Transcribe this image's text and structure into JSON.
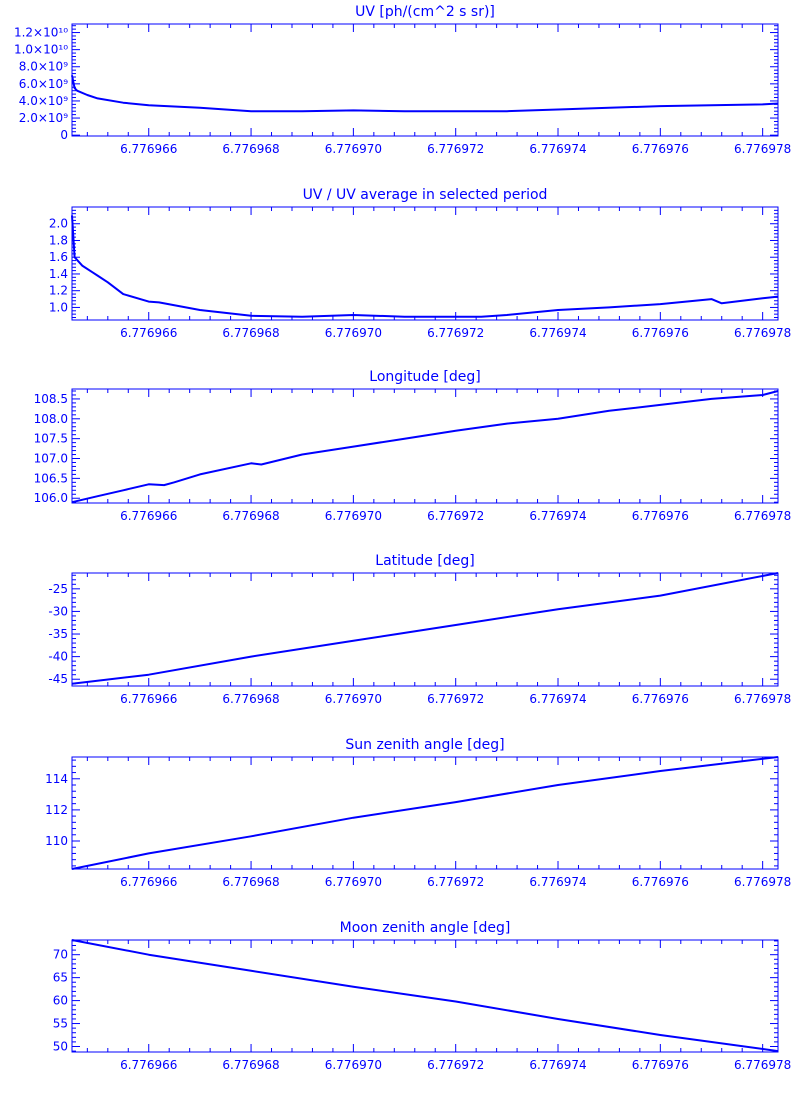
{
  "colors": {
    "line": "#0000ff",
    "background": "#ffffff"
  },
  "x_tick_labels": [
    "6.776966",
    "6.776968",
    "6.776970",
    "6.776972",
    "6.776974",
    "6.776976",
    "6.776978"
  ],
  "chart_data": [
    {
      "type": "line",
      "title": "UV [ph/(cm^2 s sr)]",
      "x": [
        6.7769645,
        6.77696455,
        6.7769646,
        6.7769648,
        6.776965,
        6.7769655,
        6.776966,
        6.776967,
        6.776968,
        6.776969,
        6.77697,
        6.776971,
        6.776972,
        6.776973,
        6.776974,
        6.776975,
        6.776976,
        6.776977,
        6.776978,
        6.7769783
      ],
      "y": [
        7000000000.0,
        5500000000.0,
        5200000000.0,
        4700000000.0,
        4300000000.0,
        3800000000.0,
        3500000000.0,
        3200000000.0,
        2800000000.0,
        2800000000.0,
        2900000000.0,
        2800000000.0,
        2800000000.0,
        2800000000.0,
        3000000000.0,
        3200000000.0,
        3400000000.0,
        3500000000.0,
        3600000000.0,
        3700000000.0
      ],
      "xlim": [
        6.7769645,
        6.7769783
      ],
      "ylim": [
        -100000000.0,
        13000000000.0
      ],
      "y_ticks": [
        0,
        2000000000.0,
        4000000000.0,
        6000000000.0,
        8000000000.0,
        10000000000.0,
        12000000000.0
      ],
      "y_tick_labels": [
        "0",
        "2.0×10⁹",
        "4.0×10⁹",
        "6.0×10⁹",
        "8.0×10⁹",
        "1.0×10¹⁰",
        "1.2×10¹⁰"
      ]
    },
    {
      "type": "line",
      "title": "UV / UV average in selected period",
      "x": [
        6.7769645,
        6.77696455,
        6.7769647,
        6.7769649,
        6.776965,
        6.7769652,
        6.7769655,
        6.776966,
        6.7769662,
        6.776967,
        6.776968,
        6.776969,
        6.77697,
        6.776971,
        6.776972,
        6.7769725,
        6.776973,
        6.776974,
        6.776975,
        6.776976,
        6.776977,
        6.7769772,
        6.776978,
        6.7769783
      ],
      "y": [
        2.1,
        1.6,
        1.5,
        1.42,
        1.38,
        1.3,
        1.16,
        1.07,
        1.06,
        0.97,
        0.9,
        0.89,
        0.91,
        0.89,
        0.89,
        0.89,
        0.91,
        0.97,
        1.0,
        1.04,
        1.1,
        1.05,
        1.11,
        1.13
      ],
      "xlim": [
        6.7769645,
        6.7769783
      ],
      "ylim": [
        0.85,
        2.2
      ],
      "y_ticks": [
        1.0,
        1.2,
        1.4,
        1.6,
        1.8,
        2.0
      ],
      "y_tick_labels": [
        "1.0",
        "1.2",
        "1.4",
        "1.6",
        "1.8",
        "2.0"
      ]
    },
    {
      "type": "line",
      "title": "Longitude [deg]",
      "x": [
        6.7769645,
        6.776965,
        6.7769655,
        6.776966,
        6.7769663,
        6.7769665,
        6.776967,
        6.776968,
        6.7769682,
        6.776969,
        6.77697,
        6.776971,
        6.776972,
        6.776973,
        6.776974,
        6.776975,
        6.776976,
        6.776977,
        6.776978,
        6.7769783
      ],
      "y": [
        105.9,
        106.05,
        106.2,
        106.35,
        106.33,
        106.4,
        106.6,
        106.88,
        106.85,
        107.1,
        107.3,
        107.5,
        107.7,
        107.88,
        108.0,
        108.2,
        108.35,
        108.5,
        108.6,
        108.7
      ],
      "xlim": [
        6.7769645,
        6.7769783
      ],
      "ylim": [
        105.88,
        108.75
      ],
      "y_ticks": [
        106.0,
        106.5,
        107.0,
        107.5,
        108.0,
        108.5
      ],
      "y_tick_labels": [
        "106.0",
        "106.5",
        "107.0",
        "107.5",
        "108.0",
        "108.5"
      ]
    },
    {
      "type": "line",
      "title": "Latitude [deg]",
      "x": [
        6.7769645,
        6.776966,
        6.776968,
        6.77697,
        6.776972,
        6.776974,
        6.776976,
        6.7769783
      ],
      "y": [
        -46.0,
        -44.0,
        -40.0,
        -36.5,
        -33.0,
        -29.5,
        -26.5,
        -21.5
      ],
      "xlim": [
        6.7769645,
        6.7769783
      ],
      "ylim": [
        -46.5,
        -21.5
      ],
      "y_ticks": [
        -45,
        -40,
        -35,
        -30,
        -25
      ],
      "y_tick_labels": [
        "-45",
        "-40",
        "-35",
        "-30",
        "-25"
      ]
    },
    {
      "type": "line",
      "title": "Sun zenith angle [deg]",
      "x": [
        6.7769645,
        6.776966,
        6.776968,
        6.77697,
        6.776972,
        6.776974,
        6.776976,
        6.7769783
      ],
      "y": [
        108.2,
        109.2,
        110.3,
        111.5,
        112.5,
        113.6,
        114.5,
        115.4
      ],
      "xlim": [
        6.7769645,
        6.7769783
      ],
      "ylim": [
        108.2,
        115.4
      ],
      "y_ticks": [
        110,
        112,
        114
      ],
      "y_tick_labels": [
        "110",
        "112",
        "114"
      ]
    },
    {
      "type": "line",
      "title": "Moon zenith angle [deg]",
      "x": [
        6.7769645,
        6.776966,
        6.776968,
        6.77697,
        6.776972,
        6.776974,
        6.776976,
        6.7769783
      ],
      "y": [
        73.2,
        70.0,
        66.5,
        63.0,
        59.8,
        56.0,
        52.5,
        49.0
      ],
      "xlim": [
        6.7769645,
        6.7769783
      ],
      "ylim": [
        48.8,
        73.2
      ],
      "y_ticks": [
        50,
        55,
        60,
        65,
        70
      ],
      "y_tick_labels": [
        "50",
        "55",
        "60",
        "65",
        "70"
      ]
    }
  ]
}
